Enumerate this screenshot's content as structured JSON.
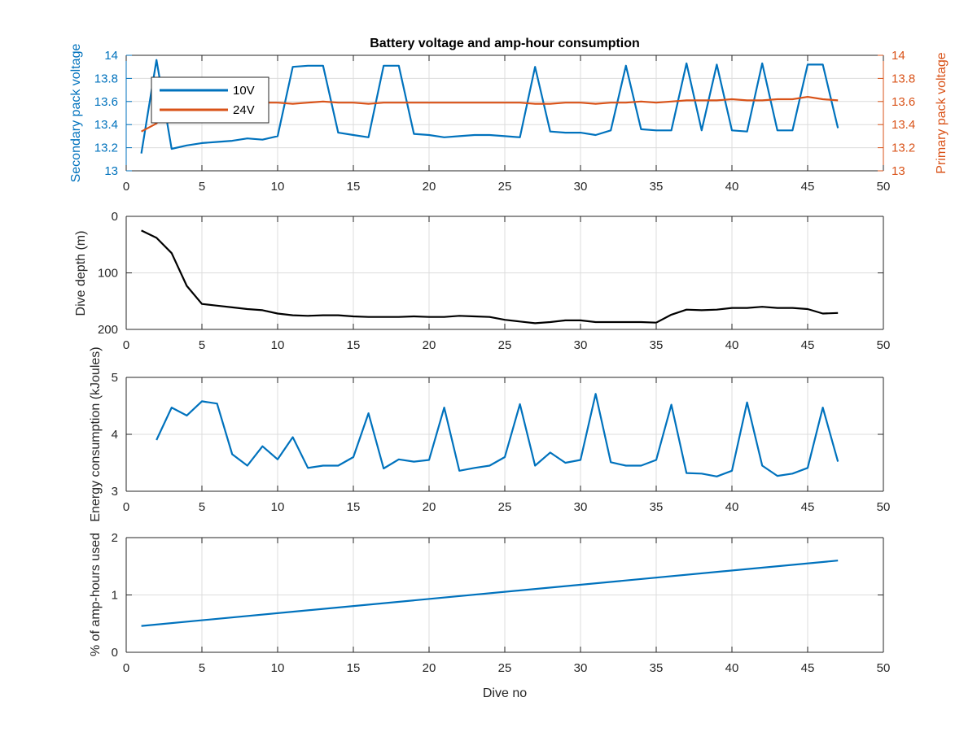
{
  "colors": {
    "blue": "#0072BD",
    "orange": "#D95319",
    "black": "#000000",
    "axis": "#262626",
    "grid": "#dcdcdc"
  },
  "chart_data": [
    {
      "type": "line",
      "title": "Battery voltage and amp-hour consumption",
      "xlabel": "",
      "ylabel_left": "Secondary pack voltage",
      "ylabel_right": "Primary pack voltage",
      "xlim": [
        0,
        50
      ],
      "ylim_left": [
        13,
        14
      ],
      "ylim_right": [
        13,
        14
      ],
      "x_ticks": [
        "0",
        "5",
        "10",
        "15",
        "20",
        "25",
        "30",
        "35",
        "40",
        "45",
        "50"
      ],
      "y_ticks_left": [
        "13",
        "13.2",
        "13.4",
        "13.6",
        "13.8",
        "14"
      ],
      "y_ticks_right": [
        "13",
        "13.2",
        "13.4",
        "13.6",
        "13.8",
        "14"
      ],
      "grid": true,
      "legend_position": "top-left",
      "series": [
        {
          "name": "10V",
          "axis": "left",
          "x": [
            1,
            2,
            3,
            4,
            5,
            6,
            7,
            8,
            9,
            10,
            11,
            12,
            13,
            14,
            15,
            16,
            17,
            18,
            19,
            20,
            21,
            22,
            23,
            24,
            25,
            26,
            27,
            28,
            29,
            30,
            31,
            32,
            33,
            34,
            35,
            36,
            37,
            38,
            39,
            40,
            41,
            42,
            43,
            44,
            45,
            46,
            47
          ],
          "values": [
            13.15,
            13.96,
            13.19,
            13.22,
            13.24,
            13.25,
            13.26,
            13.28,
            13.27,
            13.3,
            13.9,
            13.91,
            13.91,
            13.33,
            13.31,
            13.29,
            13.91,
            13.91,
            13.32,
            13.31,
            13.29,
            13.3,
            13.31,
            13.31,
            13.3,
            13.29,
            13.9,
            13.34,
            13.33,
            13.33,
            13.31,
            13.35,
            13.91,
            13.36,
            13.35,
            13.35,
            13.93,
            13.35,
            13.92,
            13.35,
            13.34,
            13.93,
            13.35,
            13.35,
            13.92,
            13.92,
            13.37
          ]
        },
        {
          "name": "24V",
          "axis": "right",
          "x": [
            1,
            2,
            3,
            4,
            5,
            6,
            7,
            8,
            9,
            10,
            11,
            12,
            13,
            14,
            15,
            16,
            17,
            18,
            19,
            20,
            21,
            22,
            23,
            24,
            25,
            26,
            27,
            28,
            29,
            30,
            31,
            32,
            33,
            34,
            35,
            36,
            37,
            38,
            39,
            40,
            41,
            42,
            43,
            44,
            45,
            46,
            47
          ],
          "values": [
            13.34,
            13.41,
            13.55,
            13.58,
            13.59,
            13.59,
            13.59,
            13.59,
            13.59,
            13.59,
            13.58,
            13.59,
            13.6,
            13.59,
            13.59,
            13.58,
            13.59,
            13.59,
            13.59,
            13.59,
            13.59,
            13.59,
            13.59,
            13.59,
            13.59,
            13.59,
            13.58,
            13.58,
            13.59,
            13.59,
            13.58,
            13.59,
            13.59,
            13.6,
            13.59,
            13.6,
            13.61,
            13.61,
            13.61,
            13.62,
            13.61,
            13.61,
            13.62,
            13.62,
            13.64,
            13.62,
            13.61
          ]
        }
      ]
    },
    {
      "type": "line",
      "title": "",
      "xlabel": "",
      "ylabel": "Dive depth (m)",
      "xlim": [
        0,
        50
      ],
      "ylim": [
        0,
        200
      ],
      "y_reversed": true,
      "x_ticks": [
        "0",
        "5",
        "10",
        "15",
        "20",
        "25",
        "30",
        "35",
        "40",
        "45",
        "50"
      ],
      "y_ticks": [
        "0",
        "100",
        "200"
      ],
      "grid": true,
      "series": [
        {
          "x": [
            1,
            2,
            3,
            4,
            5,
            6,
            7,
            8,
            9,
            10,
            11,
            12,
            13,
            14,
            15,
            16,
            17,
            18,
            19,
            20,
            21,
            22,
            23,
            24,
            25,
            26,
            27,
            28,
            29,
            30,
            31,
            32,
            33,
            34,
            35,
            36,
            37,
            38,
            39,
            40,
            41,
            42,
            43,
            44,
            45,
            46,
            47
          ],
          "values": [
            25,
            38,
            65,
            123,
            155,
            158,
            161,
            164,
            166,
            172,
            175,
            176,
            175,
            175,
            177,
            178,
            178,
            178,
            177,
            178,
            178,
            176,
            177,
            178,
            183,
            186,
            189,
            187,
            184,
            184,
            187,
            187,
            187,
            187,
            188,
            174,
            165,
            166,
            165,
            162,
            162,
            160,
            162,
            162,
            164,
            172,
            171
          ]
        }
      ]
    },
    {
      "type": "line",
      "title": "",
      "xlabel": "",
      "ylabel": "Energy consumption (kJoules)",
      "xlim": [
        0,
        50
      ],
      "ylim": [
        3,
        5
      ],
      "x_ticks": [
        "0",
        "5",
        "10",
        "15",
        "20",
        "25",
        "30",
        "35",
        "40",
        "45",
        "50"
      ],
      "y_ticks": [
        "3",
        "4",
        "5"
      ],
      "grid": true,
      "series": [
        {
          "x": [
            2,
            3,
            4,
            5,
            6,
            7,
            8,
            9,
            10,
            11,
            12,
            13,
            14,
            15,
            16,
            17,
            18,
            19,
            20,
            21,
            22,
            23,
            24,
            25,
            26,
            27,
            28,
            29,
            30,
            31,
            32,
            33,
            34,
            35,
            36,
            37,
            38,
            39,
            40,
            41,
            42,
            43,
            44,
            45,
            46,
            47
          ],
          "values": [
            3.9,
            4.47,
            4.33,
            4.58,
            4.54,
            3.65,
            3.45,
            3.79,
            3.56,
            3.95,
            3.41,
            3.45,
            3.45,
            3.6,
            4.37,
            3.4,
            3.56,
            3.52,
            3.55,
            4.47,
            3.36,
            3.41,
            3.45,
            3.6,
            4.53,
            3.45,
            3.68,
            3.5,
            3.55,
            4.71,
            3.51,
            3.45,
            3.45,
            3.55,
            4.52,
            3.32,
            3.31,
            3.26,
            3.36,
            4.56,
            3.45,
            3.27,
            3.31,
            3.41,
            4.47,
            3.52
          ]
        }
      ]
    },
    {
      "type": "line",
      "title": "",
      "xlabel": "Dive no",
      "ylabel": "% of amp-hours used",
      "xlim": [
        0,
        50
      ],
      "ylim": [
        0,
        2
      ],
      "x_ticks": [
        "0",
        "5",
        "10",
        "15",
        "20",
        "25",
        "30",
        "35",
        "40",
        "45",
        "50"
      ],
      "y_ticks": [
        "0",
        "1",
        "2"
      ],
      "grid": true,
      "series": [
        {
          "x": [
            1,
            47
          ],
          "values": [
            0.46,
            1.6
          ]
        }
      ]
    }
  ]
}
